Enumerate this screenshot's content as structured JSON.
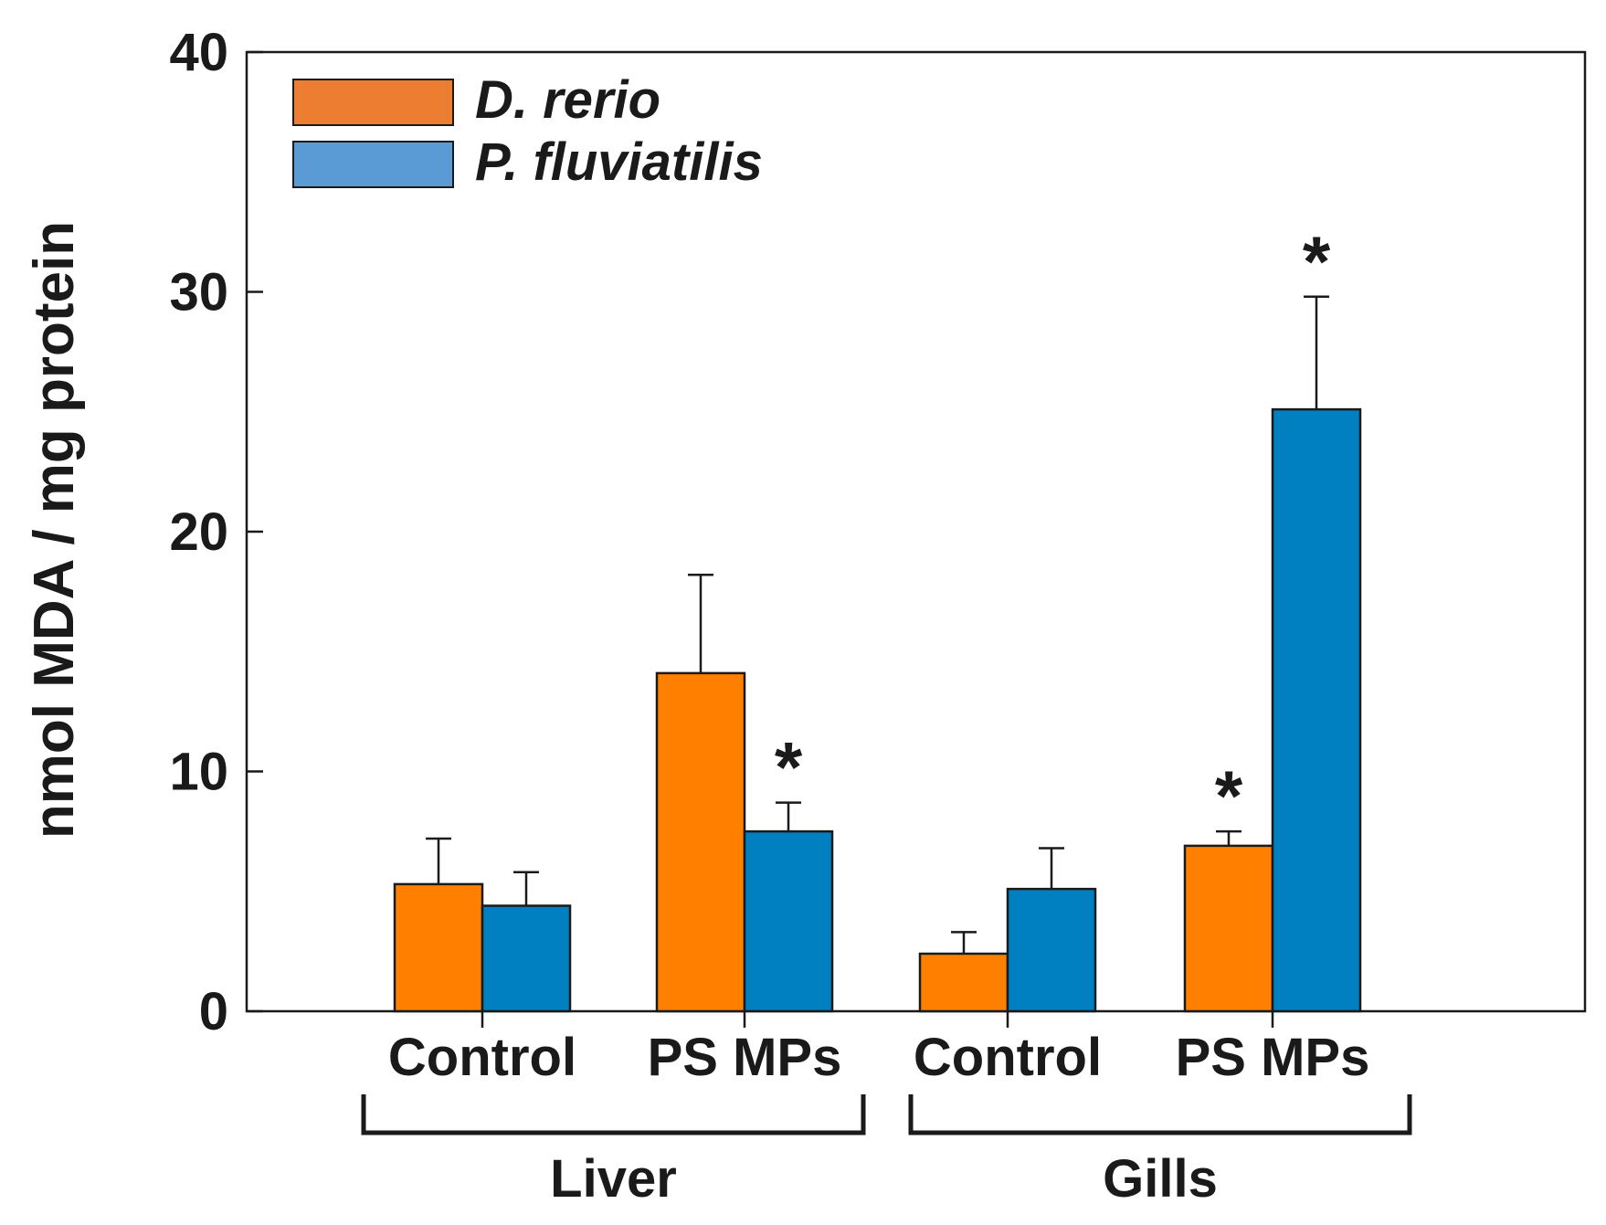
{
  "chart_data": {
    "type": "bar",
    "title": "",
    "ylabel": "nmol MDA / mg protein",
    "xlabel": "",
    "ylim": [
      0,
      40
    ],
    "yticks": [
      0,
      10,
      20,
      30,
      40
    ],
    "groups": [
      {
        "label": "Liver",
        "categories": [
          "Control",
          "PS MPs"
        ]
      },
      {
        "label": "Gills",
        "categories": [
          "Control",
          "PS MPs"
        ]
      }
    ],
    "categories": [
      "Control",
      "PS MPs",
      "Control",
      "PS MPs"
    ],
    "series": [
      {
        "name": "D. rerio",
        "color": "#ff8000",
        "legend_color": "#ed7d31",
        "values": [
          5.3,
          14.1,
          2.4,
          6.9
        ],
        "errors": [
          1.9,
          4.1,
          0.9,
          0.6
        ],
        "significant": [
          false,
          false,
          false,
          true
        ]
      },
      {
        "name": "P. fluviatilis",
        "color": "#0080c0",
        "legend_color": "#5b9bd5",
        "values": [
          4.4,
          7.5,
          5.1,
          25.1
        ],
        "errors": [
          1.4,
          1.2,
          1.7,
          4.7
        ],
        "significant": [
          false,
          true,
          false,
          true
        ]
      }
    ],
    "significance_marker": "*",
    "legend_position": "top-left"
  }
}
